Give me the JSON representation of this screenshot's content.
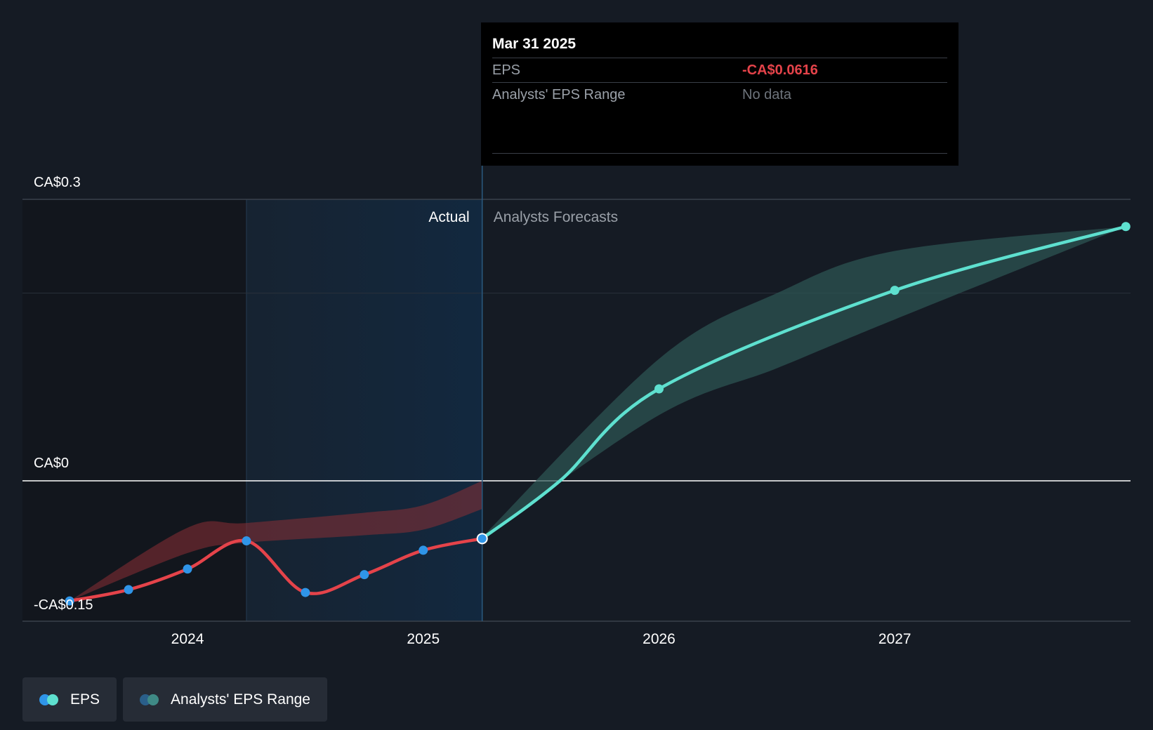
{
  "chart_data": {
    "type": "line",
    "y_axis_labels": [
      {
        "value": 0.3,
        "label": "CA$0.3"
      },
      {
        "value": 0,
        "label": "CA$0"
      },
      {
        "value": -0.15,
        "label": "-CA$0.15"
      }
    ],
    "ylim": [
      -0.15,
      0.3
    ],
    "x_ticks": [
      {
        "x": 2024.0,
        "label": "2024"
      },
      {
        "x": 2025.0,
        "label": "2025"
      },
      {
        "x": 2026.0,
        "label": "2026"
      },
      {
        "x": 2027.0,
        "label": "2027"
      }
    ],
    "region_labels": {
      "actual": "Actual",
      "forecast": "Analysts Forecasts"
    },
    "highlight_range": [
      2024.25,
      2025.25
    ],
    "divider_x": 2025.25,
    "series": [
      {
        "name": "EPS",
        "kind": "actual",
        "color": "#e5434a",
        "marker_color": "#2f95e8",
        "points": [
          [
            2023.5,
            -0.128
          ],
          [
            2023.75,
            -0.116
          ],
          [
            2024.0,
            -0.094
          ],
          [
            2024.25,
            -0.064
          ],
          [
            2024.5,
            -0.119
          ],
          [
            2024.75,
            -0.1
          ],
          [
            2025.0,
            -0.074
          ],
          [
            2025.25,
            -0.0616
          ]
        ]
      },
      {
        "name": "EPS",
        "kind": "forecast",
        "color": "#5ee0cf",
        "points": [
          [
            2025.25,
            -0.0616
          ],
          [
            2025.58,
            0.0
          ],
          [
            2026.0,
            0.098
          ],
          [
            2027.0,
            0.203
          ],
          [
            2027.98,
            0.271
          ]
        ]
      }
    ],
    "ranges": [
      {
        "name": "Analysts' EPS Range",
        "kind": "actual",
        "color": "#8b2f35",
        "upper": [
          [
            2023.5,
            -0.128
          ],
          [
            2024.0,
            -0.05
          ],
          [
            2024.25,
            -0.045
          ],
          [
            2024.75,
            -0.034
          ],
          [
            2025.0,
            -0.026
          ],
          [
            2025.25,
            0.0
          ]
        ],
        "lower": [
          [
            2023.5,
            -0.128
          ],
          [
            2024.0,
            -0.077
          ],
          [
            2024.25,
            -0.066
          ],
          [
            2024.75,
            -0.058
          ],
          [
            2025.0,
            -0.052
          ],
          [
            2025.25,
            -0.03
          ]
        ]
      },
      {
        "name": "Analysts' EPS Range",
        "kind": "forecast",
        "color": "#2e5755",
        "upper": [
          [
            2025.25,
            -0.06
          ],
          [
            2026.0,
            0.13
          ],
          [
            2026.5,
            0.2
          ],
          [
            2027.0,
            0.245
          ],
          [
            2027.98,
            0.271
          ]
        ],
        "lower": [
          [
            2025.25,
            -0.06
          ],
          [
            2026.0,
            0.07
          ],
          [
            2026.5,
            0.12
          ],
          [
            2027.0,
            0.172
          ],
          [
            2027.98,
            0.271
          ]
        ]
      }
    ]
  },
  "tooltip": {
    "date": "Mar 31 2025",
    "rows": [
      {
        "label": "EPS",
        "value": "-CA$0.0616"
      },
      {
        "label": "Analysts' EPS Range",
        "value": "No data"
      }
    ]
  },
  "legend": [
    {
      "label": "EPS",
      "colors": [
        "#2f95e8",
        "#5ee0cf"
      ]
    },
    {
      "label": "Analysts' EPS Range",
      "colors": [
        "#2a5f8a",
        "#3f8a86"
      ]
    }
  ]
}
